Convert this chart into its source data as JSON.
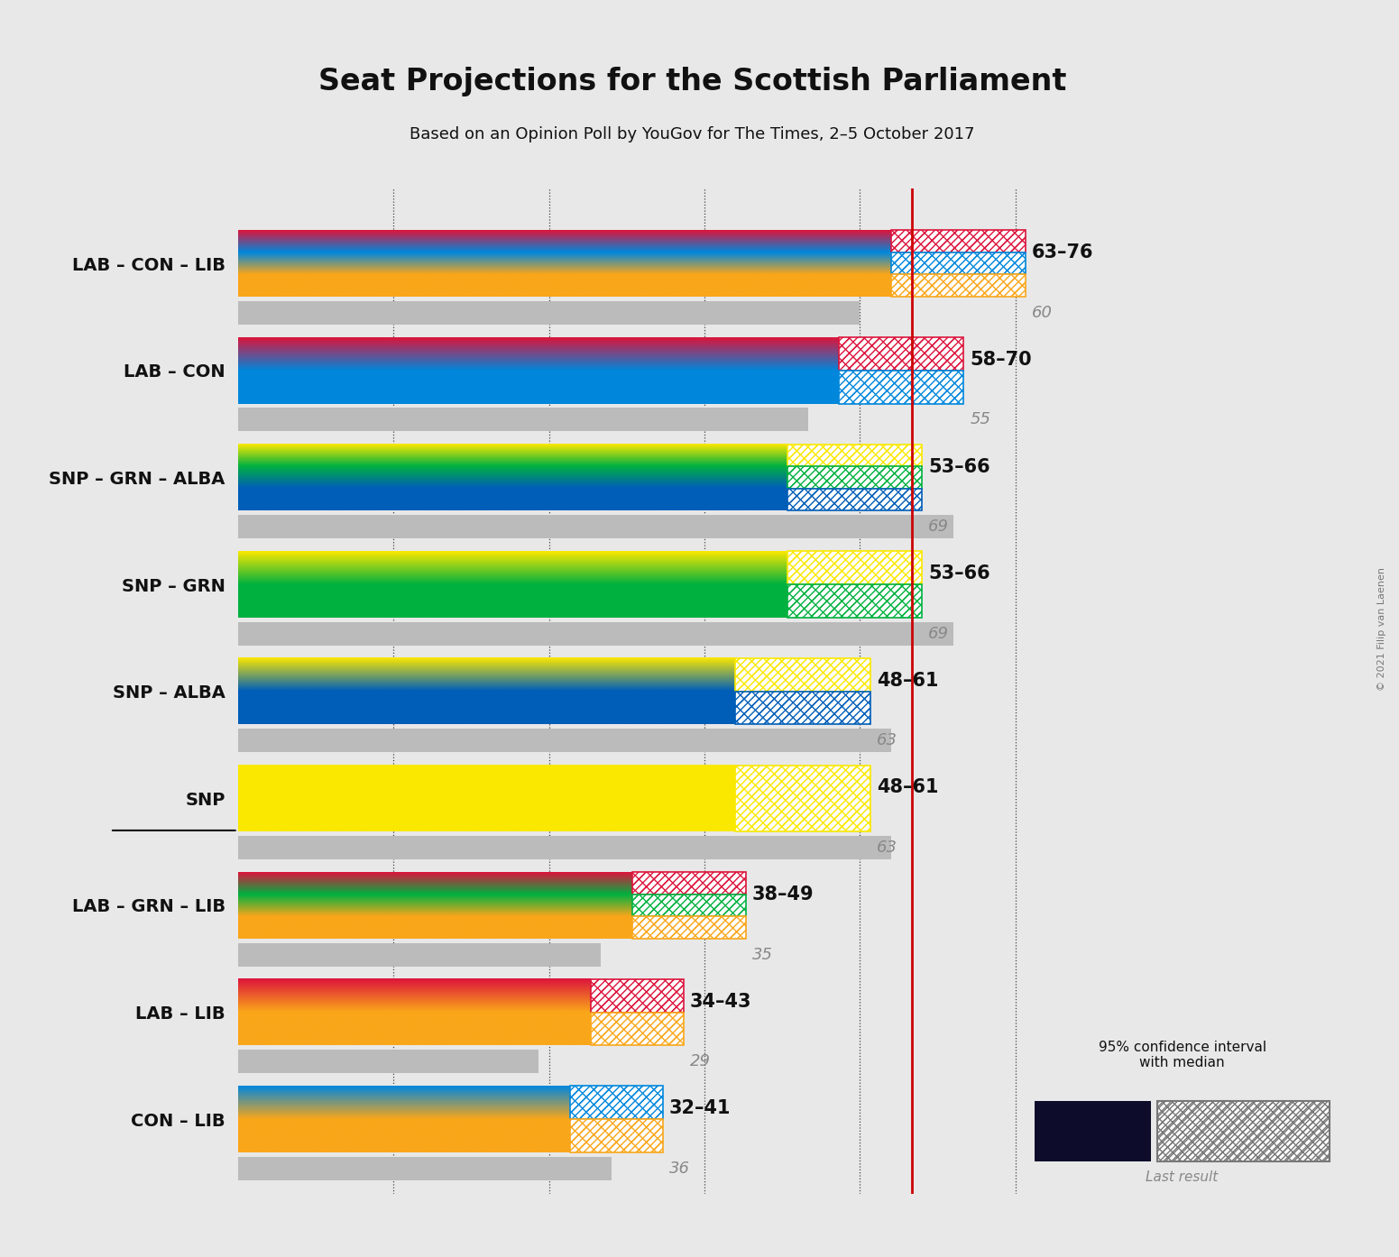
{
  "title": "Seat Projections for the Scottish Parliament",
  "subtitle": "Based on an Opinion Poll by YouGov for The Times, 2–5 October 2017",
  "copyright": "© 2021 Filip van Laenen",
  "bg_color": "#e8e8e8",
  "majority_line": 65,
  "xlim_max": 85,
  "dotted_x": [
    15,
    30,
    45,
    60,
    75
  ],
  "party_colors": {
    "LAB": "#DC143C",
    "CON": "#0087DC",
    "LIB": "#FAA61A",
    "SNP": "#FAE800",
    "GRN": "#00B140",
    "ALBA": "#005EB8"
  },
  "coalitions": [
    {
      "name": "LAB – CON – LIB",
      "parties": [
        "LAB",
        "CON",
        "LIB"
      ],
      "median": 63,
      "ci_low": 63,
      "ci_high": 76,
      "last_result": 60,
      "range_label": "63–76",
      "last_label": "60",
      "underline": false
    },
    {
      "name": "LAB – CON",
      "parties": [
        "LAB",
        "CON"
      ],
      "median": 58,
      "ci_low": 58,
      "ci_high": 70,
      "last_result": 55,
      "range_label": "58–70",
      "last_label": "55",
      "underline": false
    },
    {
      "name": "SNP – GRN – ALBA",
      "parties": [
        "SNP",
        "GRN",
        "ALBA"
      ],
      "median": 53,
      "ci_low": 53,
      "ci_high": 66,
      "last_result": 69,
      "range_label": "53–66",
      "last_label": "69",
      "underline": false
    },
    {
      "name": "SNP – GRN",
      "parties": [
        "SNP",
        "GRN"
      ],
      "median": 53,
      "ci_low": 53,
      "ci_high": 66,
      "last_result": 69,
      "range_label": "53–66",
      "last_label": "69",
      "underline": false
    },
    {
      "name": "SNP – ALBA",
      "parties": [
        "SNP",
        "ALBA"
      ],
      "median": 48,
      "ci_low": 48,
      "ci_high": 61,
      "last_result": 63,
      "range_label": "48–61",
      "last_label": "63",
      "underline": false
    },
    {
      "name": "SNP",
      "parties": [
        "SNP"
      ],
      "median": 48,
      "ci_low": 48,
      "ci_high": 61,
      "last_result": 63,
      "range_label": "48–61",
      "last_label": "63",
      "underline": true
    },
    {
      "name": "LAB – GRN – LIB",
      "parties": [
        "LAB",
        "GRN",
        "LIB"
      ],
      "median": 38,
      "ci_low": 38,
      "ci_high": 49,
      "last_result": 35,
      "range_label": "38–49",
      "last_label": "35",
      "underline": false
    },
    {
      "name": "LAB – LIB",
      "parties": [
        "LAB",
        "LIB"
      ],
      "median": 34,
      "ci_low": 34,
      "ci_high": 43,
      "last_result": 29,
      "range_label": "34–43",
      "last_label": "29",
      "underline": false
    },
    {
      "name": "CON – LIB",
      "parties": [
        "CON",
        "LIB"
      ],
      "median": 32,
      "ci_low": 32,
      "ci_high": 41,
      "last_result": 36,
      "range_label": "32–41",
      "last_label": "36",
      "underline": false
    }
  ]
}
